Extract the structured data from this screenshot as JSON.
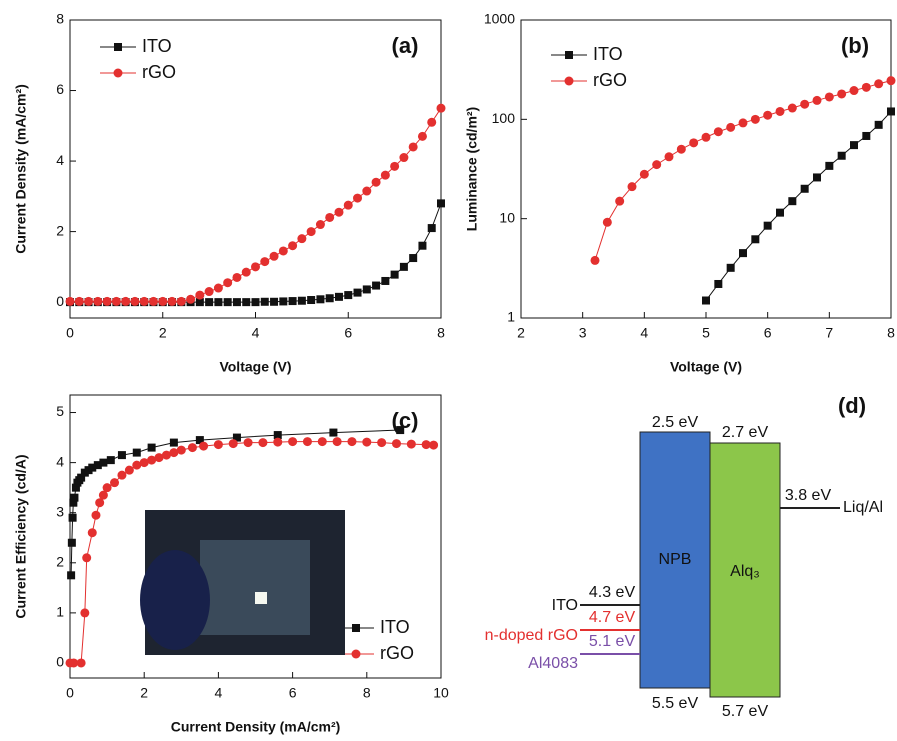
{
  "chart_data": [
    {
      "type": "scatter-line",
      "title": "(a)",
      "x_label": "Voltage (V)",
      "y_label": "Current Density (mA/cm²)",
      "xlim": [
        0,
        8
      ],
      "xticks": [
        0,
        2,
        4,
        6,
        8
      ],
      "ylim": [
        -0.45,
        8
      ],
      "yticks": [
        0,
        2,
        4,
        6,
        8
      ],
      "log_y": false,
      "legend": "upper left",
      "series": [
        {
          "name": "ITO",
          "color": "#111111",
          "marker": "square",
          "x": [
            0,
            0.2,
            0.4,
            0.6,
            0.8,
            1,
            1.2,
            1.4,
            1.6,
            1.8,
            2,
            2.2,
            2.4,
            2.6,
            2.8,
            3,
            3.2,
            3.4,
            3.6,
            3.8,
            4,
            4.2,
            4.4,
            4.6,
            4.8,
            5,
            5.2,
            5.4,
            5.6,
            5.8,
            6,
            6.2,
            6.4,
            6.6,
            6.8,
            7,
            7.2,
            7.4,
            7.6,
            7.8,
            8
          ],
          "values": [
            0,
            0,
            0,
            0,
            0,
            0,
            0,
            0,
            0,
            0,
            0,
            0,
            0,
            0,
            0,
            0,
            0,
            0,
            0,
            0,
            0,
            0.01,
            0.01,
            0.02,
            0.03,
            0.04,
            0.06,
            0.08,
            0.11,
            0.15,
            0.2,
            0.27,
            0.36,
            0.47,
            0.6,
            0.78,
            1.0,
            1.25,
            1.6,
            2.1,
            2.8
          ]
        },
        {
          "name": "rGO",
          "color": "#e3302f",
          "marker": "circle",
          "x": [
            0,
            0.2,
            0.4,
            0.6,
            0.8,
            1,
            1.2,
            1.4,
            1.6,
            1.8,
            2,
            2.2,
            2.4,
            2.6,
            2.8,
            3,
            3.2,
            3.4,
            3.6,
            3.8,
            4,
            4.2,
            4.4,
            4.6,
            4.8,
            5,
            5.2,
            5.4,
            5.6,
            5.8,
            6,
            6.2,
            6.4,
            6.6,
            6.8,
            7,
            7.2,
            7.4,
            7.6,
            7.8,
            8
          ],
          "values": [
            0.02,
            0.02,
            0.02,
            0.02,
            0.02,
            0.02,
            0.02,
            0.02,
            0.02,
            0.02,
            0.02,
            0.02,
            0.02,
            0.08,
            0.2,
            0.3,
            0.4,
            0.55,
            0.7,
            0.85,
            1.0,
            1.15,
            1.3,
            1.45,
            1.6,
            1.8,
            2.0,
            2.2,
            2.4,
            2.55,
            2.75,
            2.95,
            3.15,
            3.4,
            3.6,
            3.85,
            4.1,
            4.4,
            4.7,
            5.1,
            5.5
          ]
        }
      ]
    },
    {
      "type": "scatter-line",
      "title": "(b)",
      "x_label": "Voltage (V)",
      "y_label": "Luminance (cd/m²)",
      "xlim": [
        2,
        8
      ],
      "xticks": [
        2,
        3,
        4,
        5,
        6,
        7,
        8
      ],
      "ylim": [
        1,
        1000
      ],
      "yticks": [
        1,
        10,
        100,
        1000
      ],
      "log_y": true,
      "legend": "upper left",
      "series": [
        {
          "name": "ITO",
          "color": "#111111",
          "marker": "square",
          "x": [
            5,
            5.2,
            5.4,
            5.6,
            5.8,
            6,
            6.2,
            6.4,
            6.6,
            6.8,
            7,
            7.2,
            7.4,
            7.6,
            7.8,
            8
          ],
          "values": [
            1.5,
            2.2,
            3.2,
            4.5,
            6.2,
            8.5,
            11.5,
            15,
            20,
            26,
            34,
            43,
            55,
            68,
            88,
            120
          ]
        },
        {
          "name": "rGO",
          "color": "#e3302f",
          "marker": "circle",
          "x": [
            3.2,
            3.4,
            3.6,
            3.8,
            4,
            4.2,
            4.4,
            4.6,
            4.8,
            5,
            5.2,
            5.4,
            5.6,
            5.8,
            6,
            6.2,
            6.4,
            6.6,
            6.8,
            7,
            7.2,
            7.4,
            7.6,
            7.8,
            8
          ],
          "values": [
            3.8,
            9.2,
            15,
            21,
            28,
            35,
            42,
            50,
            58,
            66,
            75,
            83,
            92,
            100,
            110,
            120,
            130,
            142,
            155,
            168,
            180,
            195,
            210,
            228,
            245
          ]
        }
      ]
    },
    {
      "type": "scatter-line",
      "title": "(c)",
      "x_label": "Current Density (mA/cm²)",
      "y_label": "Current Efficiency (cd/A)",
      "xlim": [
        0,
        10
      ],
      "xticks": [
        0,
        2,
        4,
        6,
        8,
        10
      ],
      "ylim": [
        -0.3,
        5.35
      ],
      "yticks": [
        0,
        1,
        2,
        3,
        4,
        5
      ],
      "log_y": false,
      "legend": "lower right",
      "series": [
        {
          "name": "ITO",
          "color": "#111111",
          "marker": "square",
          "x": [
            0.03,
            0.05,
            0.07,
            0.09,
            0.12,
            0.16,
            0.2,
            0.25,
            0.3,
            0.4,
            0.5,
            0.6,
            0.75,
            0.9,
            1.1,
            1.4,
            1.8,
            2.2,
            2.8,
            3.5,
            4.5,
            5.6,
            7.1,
            8.9
          ],
          "values": [
            1.75,
            2.4,
            2.9,
            3.2,
            3.3,
            3.5,
            3.6,
            3.65,
            3.7,
            3.8,
            3.85,
            3.9,
            3.95,
            4.0,
            4.05,
            4.15,
            4.2,
            4.3,
            4.4,
            4.45,
            4.5,
            4.55,
            4.6,
            4.65
          ]
        },
        {
          "name": "rGO",
          "color": "#e3302f",
          "marker": "circle",
          "x": [
            0,
            0.1,
            0.3,
            0.4,
            0.45,
            0.6,
            0.7,
            0.8,
            0.9,
            1.0,
            1.2,
            1.4,
            1.6,
            1.8,
            2.0,
            2.2,
            2.4,
            2.6,
            2.8,
            3.0,
            3.3,
            3.6,
            4.0,
            4.4,
            4.8,
            5.2,
            5.6,
            6.0,
            6.4,
            6.8,
            7.2,
            7.6,
            8.0,
            8.4,
            8.8,
            9.2,
            9.6,
            9.8
          ],
          "values": [
            0,
            0,
            0,
            1.0,
            2.1,
            2.6,
            2.95,
            3.2,
            3.35,
            3.5,
            3.6,
            3.75,
            3.85,
            3.95,
            4.0,
            4.05,
            4.1,
            4.15,
            4.2,
            4.25,
            4.3,
            4.33,
            4.36,
            4.38,
            4.4,
            4.4,
            4.41,
            4.42,
            4.42,
            4.42,
            4.42,
            4.42,
            4.41,
            4.4,
            4.38,
            4.37,
            4.36,
            4.35
          ]
        }
      ]
    }
  ],
  "energy_diagram": {
    "title": "(d)",
    "npb": {
      "name": "NPB",
      "top": "2.5 eV",
      "bottom": "5.5 eV"
    },
    "alq": {
      "name": "Alq₃",
      "top": "2.7 eV",
      "bottom": "5.7 eV"
    },
    "cathode": {
      "name": "Liq/Al",
      "level": "3.8 eV"
    },
    "anodes": [
      {
        "name": "ITO",
        "level": "4.3 eV"
      },
      {
        "name": "n-doped rGO",
        "level": "4.7 eV"
      },
      {
        "name": "Al4083",
        "level": "5.1 eV"
      }
    ]
  }
}
